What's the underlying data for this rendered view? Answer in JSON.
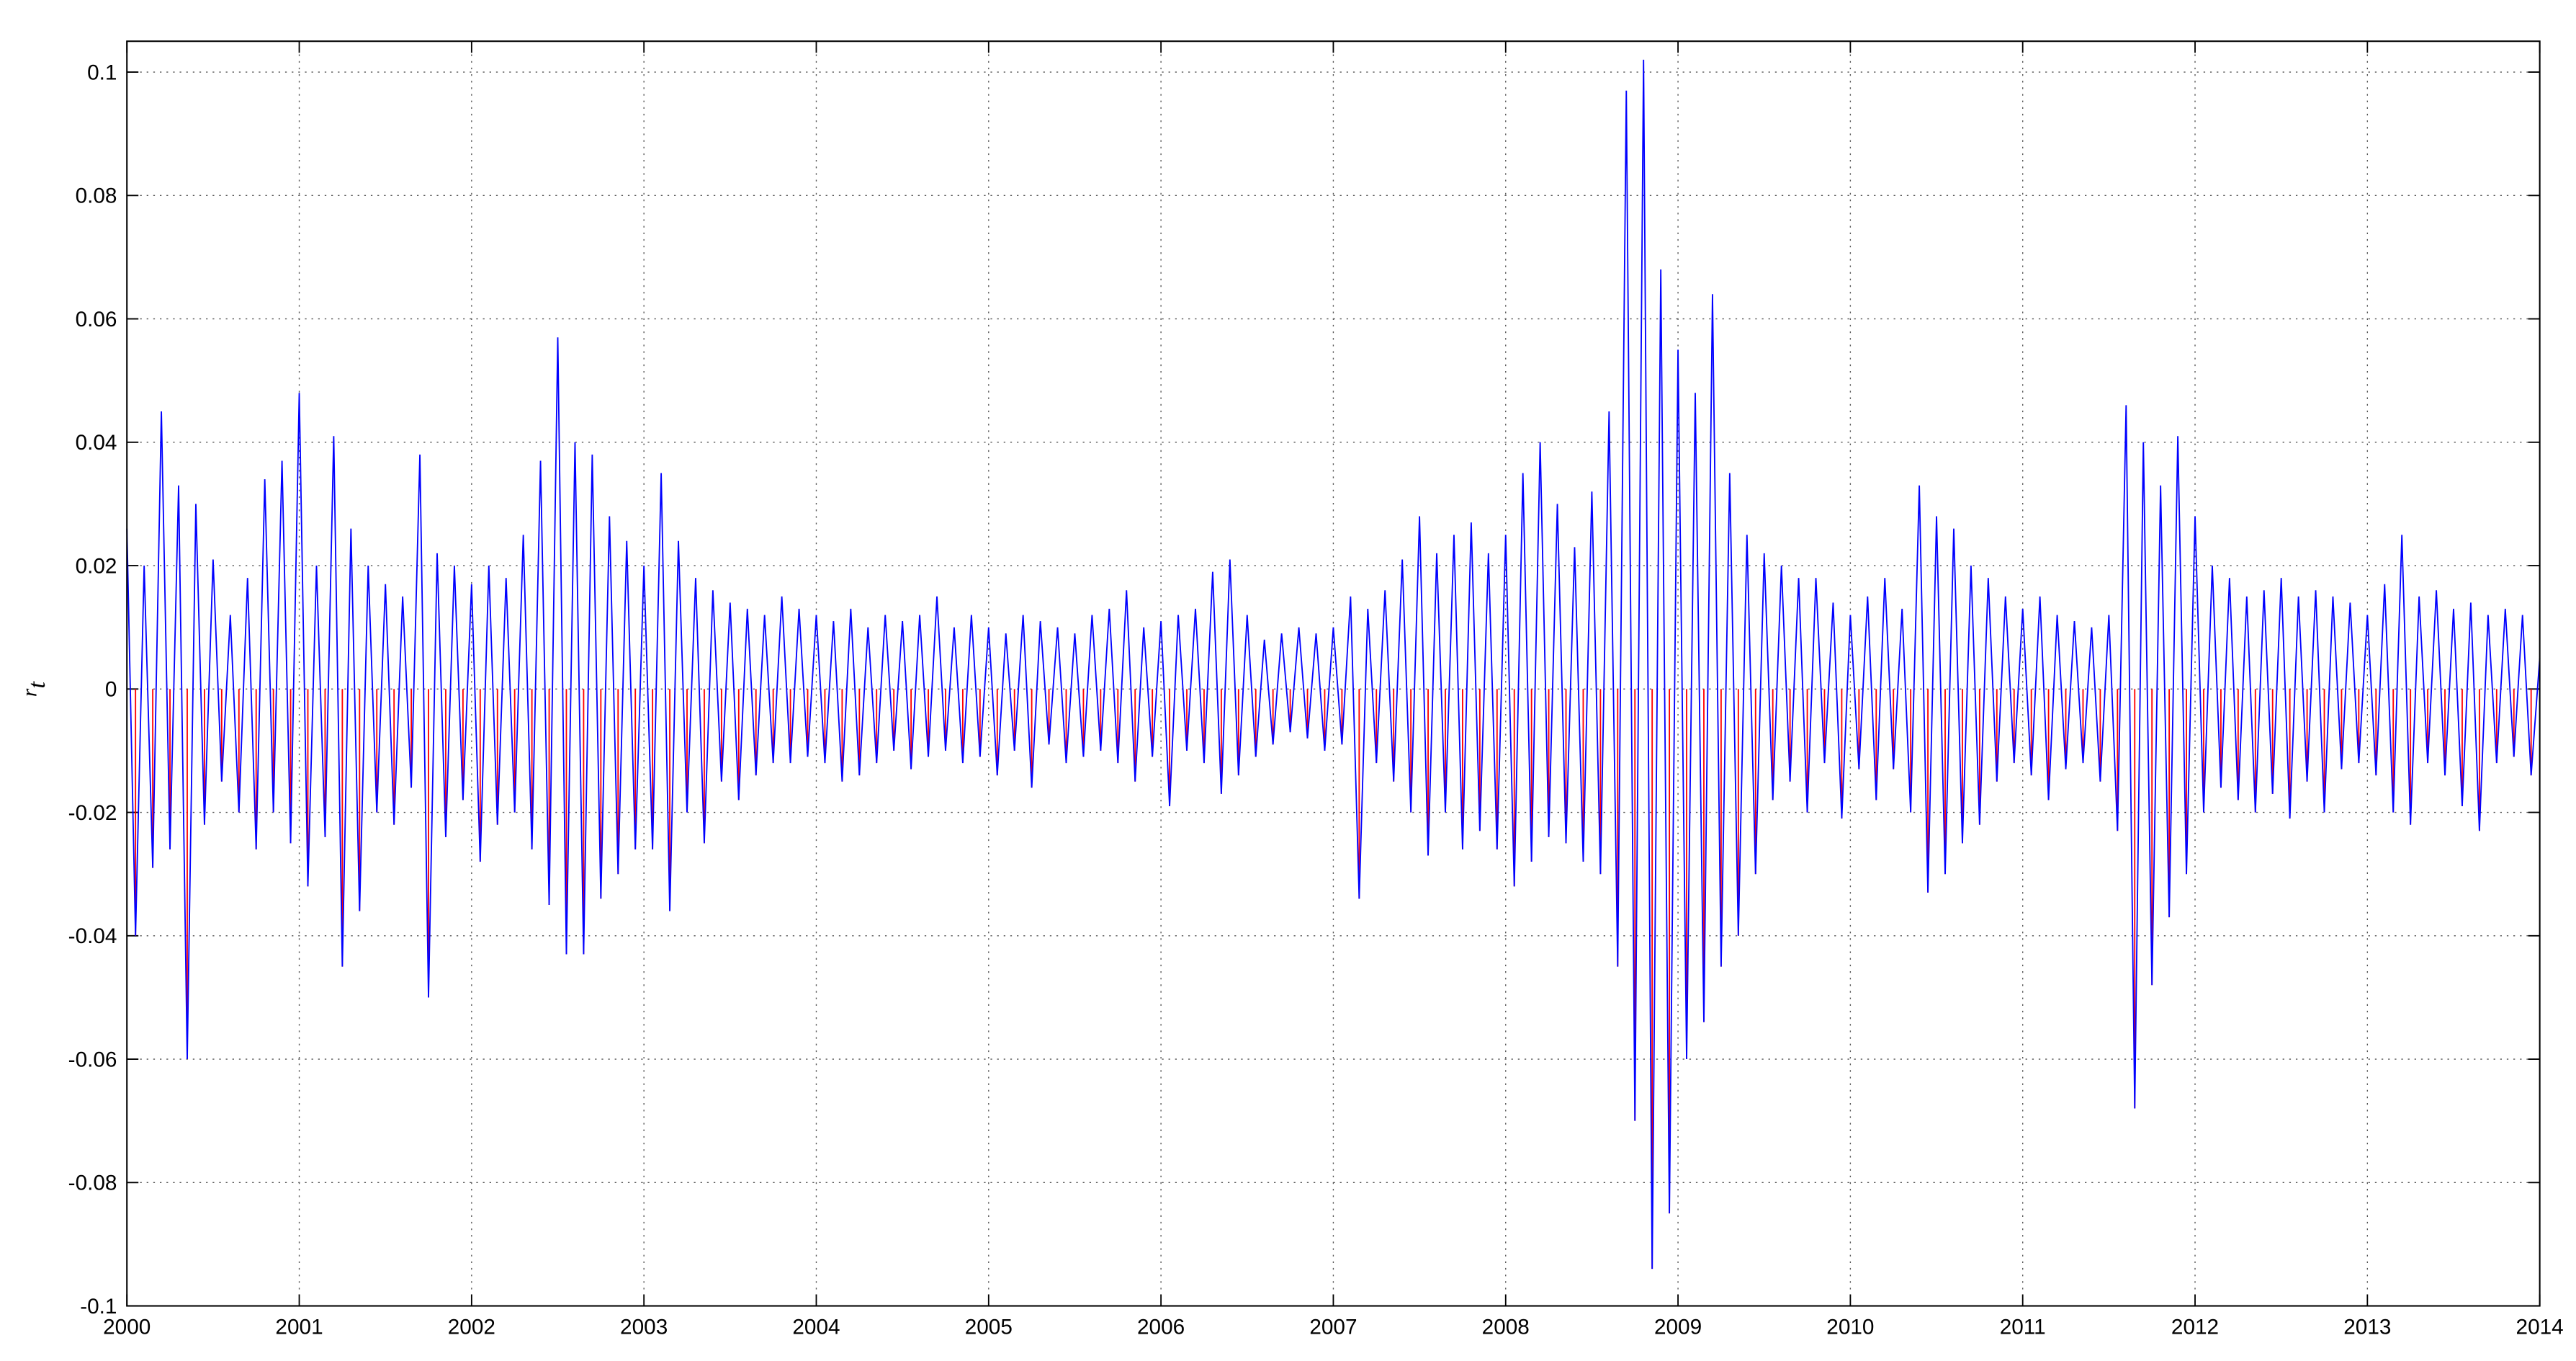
{
  "chart_data": {
    "type": "line",
    "y_label": {
      "base": "r",
      "subscript": "t"
    },
    "x": [
      2000,
      2000.05,
      2000.1,
      2000.15,
      2000.2,
      2000.25,
      2000.3,
      2000.35,
      2000.4,
      2000.45,
      2000.5,
      2000.55,
      2000.6,
      2000.65,
      2000.7,
      2000.75,
      2000.8,
      2000.85,
      2000.9,
      2000.95,
      2001,
      2001.05,
      2001.1,
      2001.15,
      2001.2,
      2001.25,
      2001.3,
      2001.35,
      2001.4,
      2001.45,
      2001.5,
      2001.55,
      2001.6,
      2001.65,
      2001.7,
      2001.75,
      2001.8,
      2001.85,
      2001.9,
      2001.95,
      2002,
      2002.05,
      2002.1,
      2002.15,
      2002.2,
      2002.25,
      2002.3,
      2002.35,
      2002.4,
      2002.45,
      2002.5,
      2002.55,
      2002.6,
      2002.65,
      2002.7,
      2002.75,
      2002.8,
      2002.85,
      2002.9,
      2002.95,
      2003,
      2003.05,
      2003.1,
      2003.15,
      2003.2,
      2003.25,
      2003.3,
      2003.35,
      2003.4,
      2003.45,
      2003.5,
      2003.55,
      2003.6,
      2003.65,
      2003.7,
      2003.75,
      2003.8,
      2003.85,
      2003.9,
      2003.95,
      2004,
      2004.05,
      2004.1,
      2004.15,
      2004.2,
      2004.25,
      2004.3,
      2004.35,
      2004.4,
      2004.45,
      2004.5,
      2004.55,
      2004.6,
      2004.65,
      2004.7,
      2004.75,
      2004.8,
      2004.85,
      2004.9,
      2004.95,
      2005,
      2005.05,
      2005.1,
      2005.15,
      2005.2,
      2005.25,
      2005.3,
      2005.35,
      2005.4,
      2005.45,
      2005.5,
      2005.55,
      2005.6,
      2005.65,
      2005.7,
      2005.75,
      2005.8,
      2005.85,
      2005.9,
      2005.95,
      2006,
      2006.05,
      2006.1,
      2006.15,
      2006.2,
      2006.25,
      2006.3,
      2006.35,
      2006.4,
      2006.45,
      2006.5,
      2006.55,
      2006.6,
      2006.65,
      2006.7,
      2006.75,
      2006.8,
      2006.85,
      2006.9,
      2006.95,
      2007,
      2007.05,
      2007.1,
      2007.15,
      2007.2,
      2007.25,
      2007.3,
      2007.35,
      2007.4,
      2007.45,
      2007.5,
      2007.55,
      2007.6,
      2007.65,
      2007.7,
      2007.75,
      2007.8,
      2007.85,
      2007.9,
      2007.95,
      2008,
      2008.05,
      2008.1,
      2008.15,
      2008.2,
      2008.25,
      2008.3,
      2008.35,
      2008.4,
      2008.45,
      2008.5,
      2008.55,
      2008.6,
      2008.65,
      2008.7,
      2008.75,
      2008.8,
      2008.85,
      2008.9,
      2008.95,
      2009,
      2009.05,
      2009.1,
      2009.15,
      2009.2,
      2009.25,
      2009.3,
      2009.35,
      2009.4,
      2009.45,
      2009.5,
      2009.55,
      2009.6,
      2009.65,
      2009.7,
      2009.75,
      2009.8,
      2009.85,
      2009.9,
      2009.95,
      2010,
      2010.05,
      2010.1,
      2010.15,
      2010.2,
      2010.25,
      2010.3,
      2010.35,
      2010.4,
      2010.45,
      2010.5,
      2010.55,
      2010.6,
      2010.65,
      2010.7,
      2010.75,
      2010.8,
      2010.85,
      2010.9,
      2010.95,
      2011,
      2011.05,
      2011.1,
      2011.15,
      2011.2,
      2011.25,
      2011.3,
      2011.35,
      2011.4,
      2011.45,
      2011.5,
      2011.55,
      2011.6,
      2011.65,
      2011.7,
      2011.75,
      2011.8,
      2011.85,
      2011.9,
      2011.95,
      2012,
      2012.05,
      2012.1,
      2012.15,
      2012.2,
      2012.25,
      2012.3,
      2012.35,
      2012.4,
      2012.45,
      2012.5,
      2012.55,
      2012.6,
      2012.65,
      2012.7,
      2012.75,
      2012.8,
      2012.85,
      2012.9,
      2012.95,
      2013,
      2013.05,
      2013.1,
      2013.15,
      2013.2,
      2013.25,
      2013.3,
      2013.35,
      2013.4,
      2013.45,
      2013.5,
      2013.55,
      2013.6,
      2013.65,
      2013.7,
      2013.75,
      2013.8,
      2013.85,
      2013.9,
      2013.95,
      2014
    ],
    "series": [
      {
        "color": "#0000ff",
        "negative_color": "#ff0000",
        "values": [
          0.026,
          -0.04,
          0.02,
          -0.029,
          0.045,
          -0.026,
          0.033,
          -0.06,
          0.03,
          -0.022,
          0.021,
          -0.015,
          0.012,
          -0.02,
          0.018,
          -0.026,
          0.034,
          -0.02,
          0.037,
          -0.025,
          0.048,
          -0.032,
          0.02,
          -0.024,
          0.041,
          -0.045,
          0.026,
          -0.036,
          0.02,
          -0.02,
          0.017,
          -0.022,
          0.015,
          -0.016,
          0.038,
          -0.05,
          0.022,
          -0.024,
          0.02,
          -0.018,
          0.017,
          -0.028,
          0.02,
          -0.022,
          0.018,
          -0.02,
          0.025,
          -0.026,
          0.037,
          -0.035,
          0.057,
          -0.043,
          0.04,
          -0.043,
          0.038,
          -0.034,
          0.028,
          -0.03,
          0.024,
          -0.026,
          0.02,
          -0.026,
          0.035,
          -0.036,
          0.024,
          -0.02,
          0.018,
          -0.025,
          0.016,
          -0.015,
          0.014,
          -0.018,
          0.013,
          -0.014,
          0.012,
          -0.012,
          0.015,
          -0.012,
          0.013,
          -0.011,
          0.012,
          -0.012,
          0.011,
          -0.015,
          0.013,
          -0.014,
          0.01,
          -0.012,
          0.012,
          -0.01,
          0.011,
          -0.013,
          0.012,
          -0.011,
          0.015,
          -0.01,
          0.01,
          -0.012,
          0.012,
          -0.011,
          0.01,
          -0.014,
          0.009,
          -0.01,
          0.012,
          -0.016,
          0.011,
          -0.009,
          0.01,
          -0.012,
          0.009,
          -0.011,
          0.012,
          -0.01,
          0.013,
          -0.012,
          0.016,
          -0.015,
          0.01,
          -0.011,
          0.011,
          -0.019,
          0.012,
          -0.01,
          0.013,
          -0.012,
          0.019,
          -0.017,
          0.021,
          -0.014,
          0.012,
          -0.011,
          0.008,
          -0.009,
          0.009,
          -0.007,
          0.01,
          -0.008,
          0.009,
          -0.01,
          0.01,
          -0.009,
          0.015,
          -0.034,
          0.013,
          -0.012,
          0.016,
          -0.015,
          0.021,
          -0.02,
          0.028,
          -0.027,
          0.022,
          -0.02,
          0.025,
          -0.026,
          0.027,
          -0.023,
          0.022,
          -0.026,
          0.025,
          -0.032,
          0.035,
          -0.028,
          0.04,
          -0.024,
          0.03,
          -0.025,
          0.023,
          -0.028,
          0.032,
          -0.03,
          0.045,
          -0.045,
          0.097,
          -0.07,
          0.102,
          -0.094,
          0.068,
          -0.085,
          0.055,
          -0.06,
          0.048,
          -0.054,
          0.064,
          -0.045,
          0.035,
          -0.04,
          0.025,
          -0.03,
          0.022,
          -0.018,
          0.02,
          -0.015,
          0.018,
          -0.02,
          0.018,
          -0.012,
          0.014,
          -0.021,
          0.012,
          -0.013,
          0.015,
          -0.018,
          0.018,
          -0.013,
          0.013,
          -0.02,
          0.033,
          -0.033,
          0.028,
          -0.03,
          0.026,
          -0.025,
          0.02,
          -0.022,
          0.018,
          -0.015,
          0.015,
          -0.012,
          0.013,
          -0.014,
          0.015,
          -0.018,
          0.012,
          -0.013,
          0.011,
          -0.012,
          0.01,
          -0.015,
          0.012,
          -0.023,
          0.046,
          -0.068,
          0.04,
          -0.048,
          0.033,
          -0.037,
          0.041,
          -0.03,
          0.028,
          -0.02,
          0.02,
          -0.016,
          0.018,
          -0.018,
          0.015,
          -0.02,
          0.016,
          -0.017,
          0.018,
          -0.021,
          0.015,
          -0.015,
          0.016,
          -0.02,
          0.015,
          -0.013,
          0.014,
          -0.012,
          0.012,
          -0.014,
          0.017,
          -0.02,
          0.025,
          -0.022,
          0.015,
          -0.012,
          0.016,
          -0.014,
          0.013,
          -0.019,
          0.014,
          -0.023,
          0.012,
          -0.012,
          0.013,
          -0.011,
          0.012,
          -0.014,
          0.005
        ]
      }
    ],
    "xlim": [
      2000,
      2014
    ],
    "xticks": [
      2000,
      2001,
      2002,
      2003,
      2004,
      2005,
      2006,
      2007,
      2008,
      2009,
      2010,
      2011,
      2012,
      2013,
      2014
    ],
    "ylim": [
      -0.1,
      0.105
    ],
    "yticks": [
      -0.1,
      -0.08,
      -0.06,
      -0.04,
      -0.02,
      0,
      0.02,
      0.04,
      0.06,
      0.08,
      0.1
    ],
    "grid": true
  }
}
